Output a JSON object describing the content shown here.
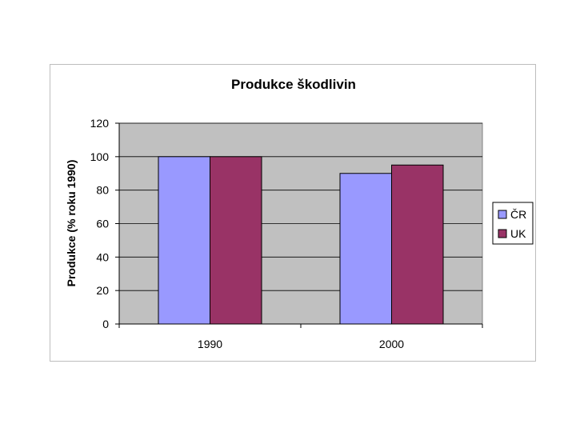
{
  "chart_data": {
    "type": "bar",
    "title": "Produkce škodlivin",
    "xlabel": "",
    "ylabel": "Produkce (% roku 1990)",
    "categories": [
      "1990",
      "2000"
    ],
    "series": [
      {
        "name": "ČR",
        "values": [
          100,
          90
        ],
        "color": "#9999ff"
      },
      {
        "name": "UK",
        "values": [
          100,
          95
        ],
        "color": "#993366"
      }
    ],
    "ylim": [
      0,
      120
    ],
    "yticks": [
      "0",
      "20",
      "40",
      "60",
      "80",
      "100",
      "120"
    ],
    "grid": true,
    "legend": "right",
    "plot_background": "#c0c0c0"
  }
}
